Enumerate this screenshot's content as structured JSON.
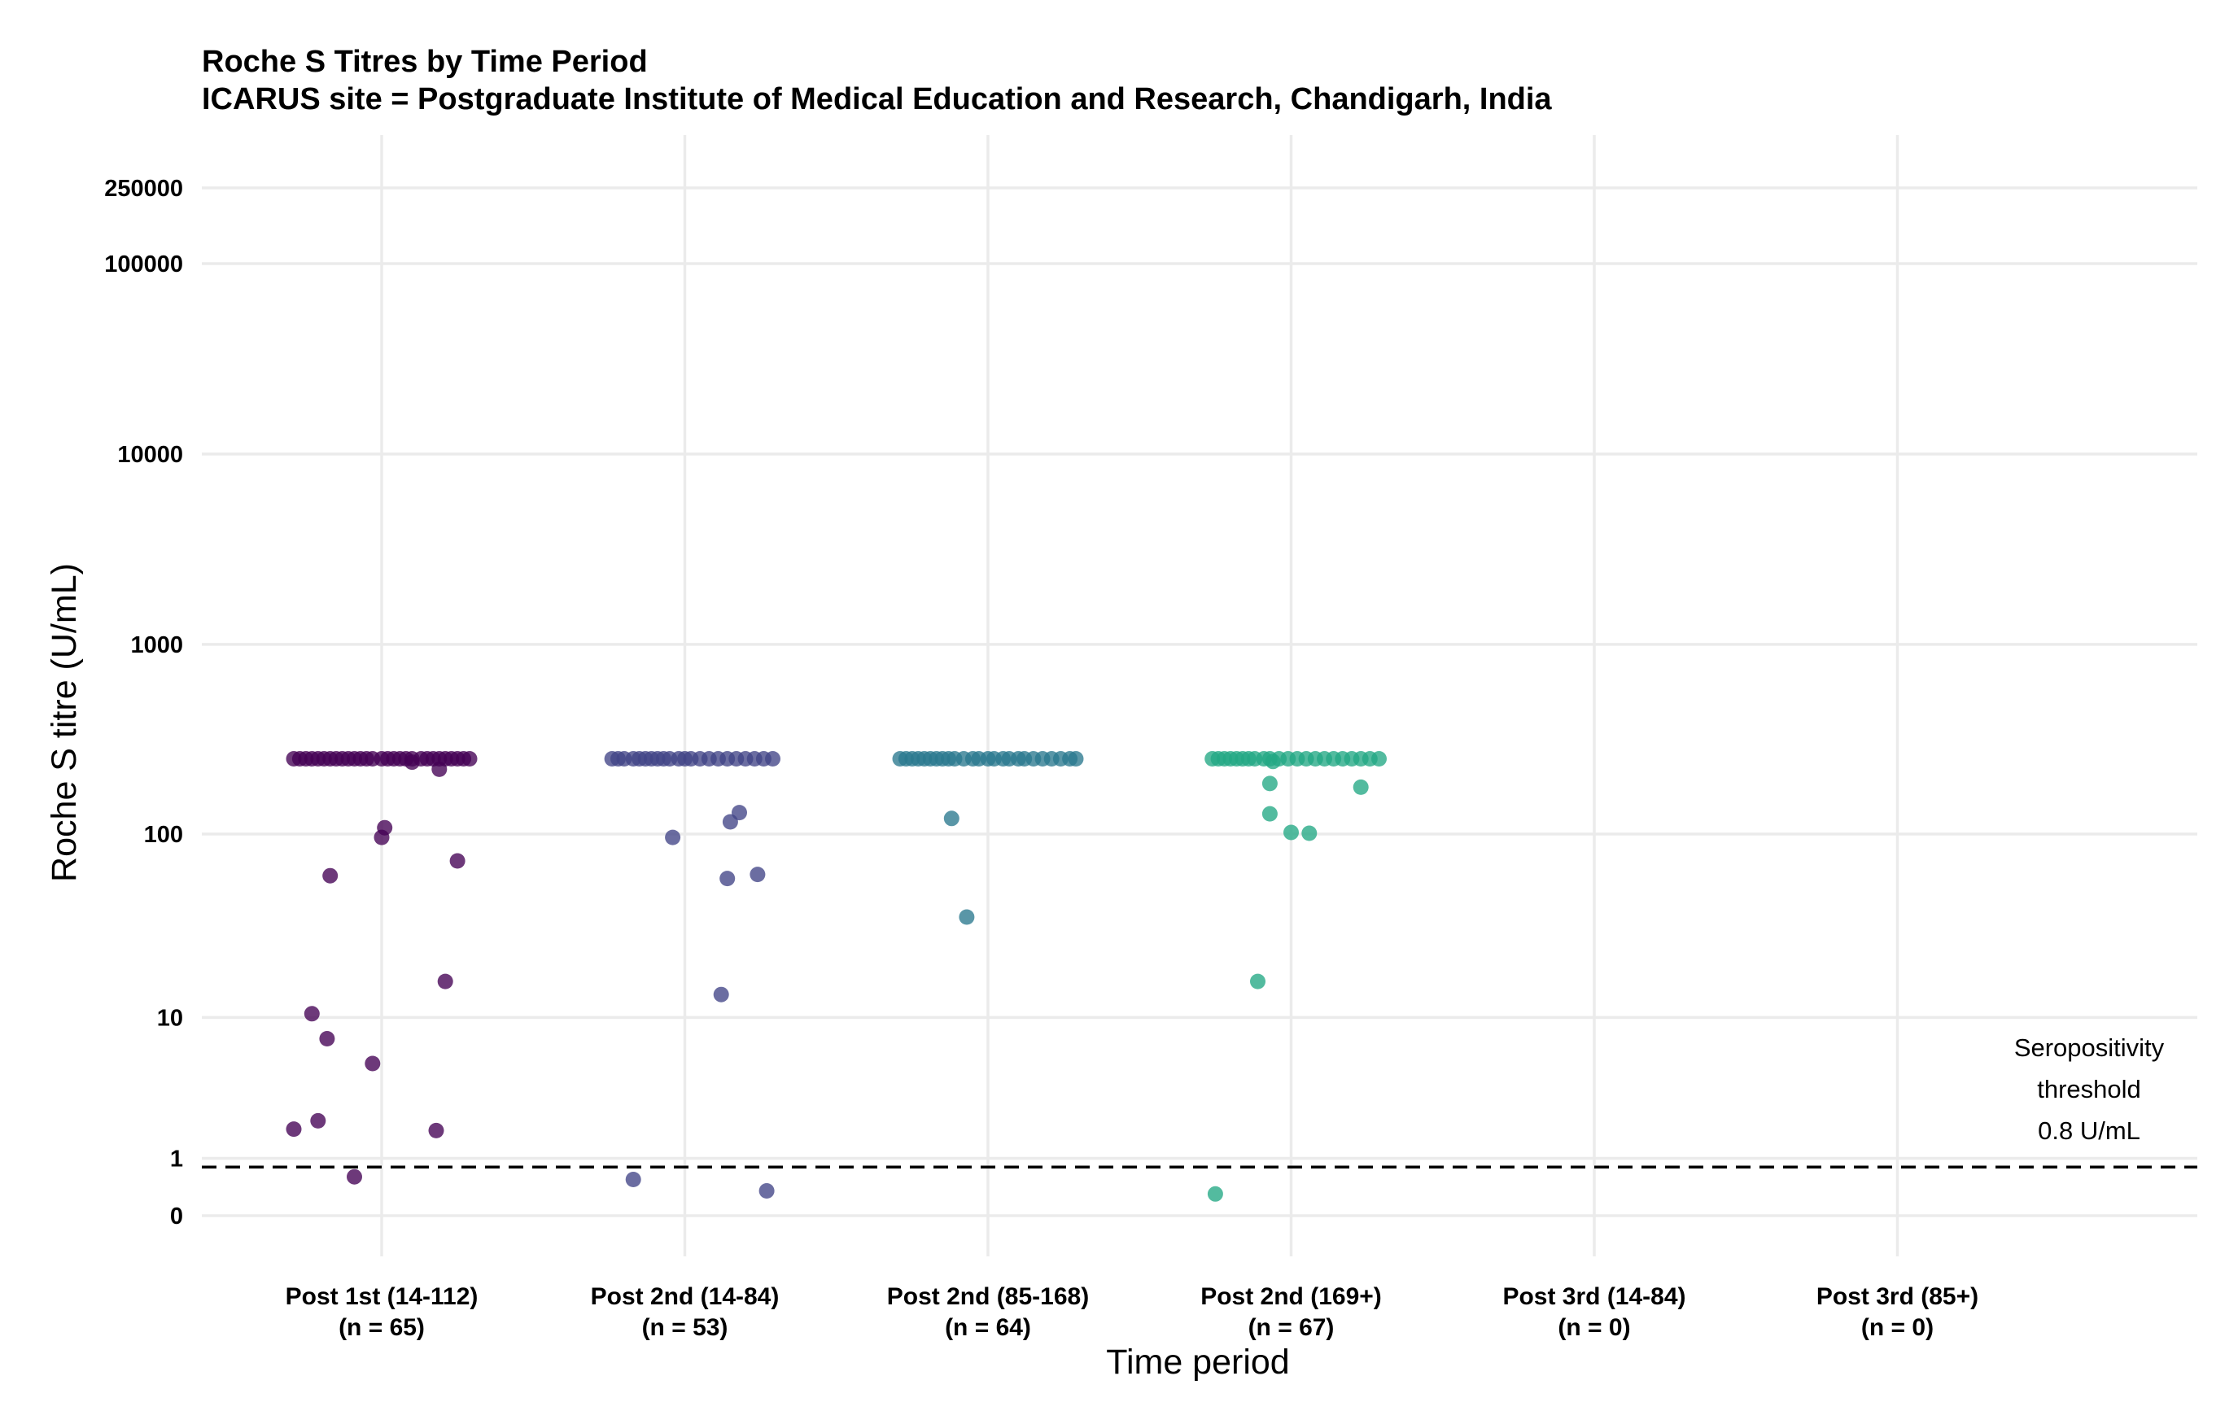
{
  "chart_data": {
    "type": "scatter",
    "title": "Roche S Titres by Time Period",
    "subtitle": "ICARUS site = Postgraduate Institute of Medical Education and Research, Chandigarh, India",
    "xlabel": "Time period",
    "ylabel": "Roche S titre (U/mL)",
    "y_scale": "pseudo-log",
    "y_ticks": [
      {
        "value": 0,
        "label": "0"
      },
      {
        "value": 1,
        "label": "1"
      },
      {
        "value": 10,
        "label": "10"
      },
      {
        "value": 100,
        "label": "100"
      },
      {
        "value": 1000,
        "label": "1000"
      },
      {
        "value": 10000,
        "label": "10000"
      },
      {
        "value": 100000,
        "label": "100000"
      },
      {
        "value": 250000,
        "label": "250000"
      }
    ],
    "grid": true,
    "threshold": {
      "value": 0.8,
      "line_style": "dashed",
      "label_lines": [
        "Seropositivity",
        "threshold",
        "0.8 U/mL"
      ]
    },
    "categories": [
      {
        "label": "Post 1st (14-112)",
        "n_label": "(n = 65)",
        "color": "#440154"
      },
      {
        "label": "Post 2nd (14-84)",
        "n_label": "(n = 53)",
        "color": "#414487"
      },
      {
        "label": "Post 2nd (85-168)",
        "n_label": "(n = 64)",
        "color": "#2A788E"
      },
      {
        "label": "Post 2nd (169+)",
        "n_label": "(n = 67)",
        "color": "#22A884"
      },
      {
        "label": "Post 3rd (14-84)",
        "n_label": "(n = 0)",
        "color": "#7AD151"
      },
      {
        "label": "Post 3rd (85+)",
        "n_label": "(n = 0)",
        "color": "#FDE725"
      }
    ],
    "points": [
      {
        "category": 0,
        "x_offset": -0.29,
        "y": 250
      },
      {
        "category": 0,
        "x_offset": -0.27,
        "y": 250
      },
      {
        "category": 0,
        "x_offset": -0.25,
        "y": 250
      },
      {
        "category": 0,
        "x_offset": -0.23,
        "y": 250
      },
      {
        "category": 0,
        "x_offset": -0.21,
        "y": 250
      },
      {
        "category": 0,
        "x_offset": -0.19,
        "y": 250
      },
      {
        "category": 0,
        "x_offset": -0.17,
        "y": 250
      },
      {
        "category": 0,
        "x_offset": -0.15,
        "y": 250
      },
      {
        "category": 0,
        "x_offset": -0.13,
        "y": 250
      },
      {
        "category": 0,
        "x_offset": -0.11,
        "y": 250
      },
      {
        "category": 0,
        "x_offset": -0.09,
        "y": 250
      },
      {
        "category": 0,
        "x_offset": -0.07,
        "y": 250
      },
      {
        "category": 0,
        "x_offset": -0.05,
        "y": 250
      },
      {
        "category": 0,
        "x_offset": -0.03,
        "y": 250
      },
      {
        "category": 0,
        "x_offset": 0.0,
        "y": 250
      },
      {
        "category": 0,
        "x_offset": 0.02,
        "y": 250
      },
      {
        "category": 0,
        "x_offset": 0.04,
        "y": 250
      },
      {
        "category": 0,
        "x_offset": 0.06,
        "y": 250
      },
      {
        "category": 0,
        "x_offset": 0.08,
        "y": 250
      },
      {
        "category": 0,
        "x_offset": 0.1,
        "y": 250
      },
      {
        "category": 0,
        "x_offset": 0.13,
        "y": 250
      },
      {
        "category": 0,
        "x_offset": 0.15,
        "y": 250
      },
      {
        "category": 0,
        "x_offset": 0.17,
        "y": 250
      },
      {
        "category": 0,
        "x_offset": 0.19,
        "y": 250
      },
      {
        "category": 0,
        "x_offset": 0.21,
        "y": 250
      },
      {
        "category": 0,
        "x_offset": 0.23,
        "y": 250
      },
      {
        "category": 0,
        "x_offset": 0.25,
        "y": 250
      },
      {
        "category": 0,
        "x_offset": 0.27,
        "y": 250
      },
      {
        "category": 0,
        "x_offset": 0.29,
        "y": 250
      },
      {
        "category": 0,
        "x_offset": 0.1,
        "y": 240
      },
      {
        "category": 0,
        "x_offset": 0.19,
        "y": 220
      },
      {
        "category": 0,
        "x_offset": 0.01,
        "y": 108
      },
      {
        "category": 0,
        "x_offset": 0.0,
        "y": 96
      },
      {
        "category": 0,
        "x_offset": 0.25,
        "y": 72
      },
      {
        "category": 0,
        "x_offset": -0.17,
        "y": 60
      },
      {
        "category": 0,
        "x_offset": 0.21,
        "y": 16
      },
      {
        "category": 0,
        "x_offset": -0.23,
        "y": 10.5
      },
      {
        "category": 0,
        "x_offset": -0.18,
        "y": 7.5
      },
      {
        "category": 0,
        "x_offset": -0.03,
        "y": 5.3
      },
      {
        "category": 0,
        "x_offset": -0.21,
        "y": 2.15
      },
      {
        "category": 0,
        "x_offset": -0.29,
        "y": 1.85
      },
      {
        "category": 0,
        "x_offset": 0.18,
        "y": 1.8
      },
      {
        "category": 0,
        "x_offset": -0.09,
        "y": 0.6
      },
      {
        "category": 1,
        "x_offset": -0.24,
        "y": 250
      },
      {
        "category": 1,
        "x_offset": -0.22,
        "y": 250
      },
      {
        "category": 1,
        "x_offset": -0.2,
        "y": 250
      },
      {
        "category": 1,
        "x_offset": -0.17,
        "y": 250
      },
      {
        "category": 1,
        "x_offset": -0.15,
        "y": 250
      },
      {
        "category": 1,
        "x_offset": -0.13,
        "y": 250
      },
      {
        "category": 1,
        "x_offset": -0.11,
        "y": 250
      },
      {
        "category": 1,
        "x_offset": -0.09,
        "y": 250
      },
      {
        "category": 1,
        "x_offset": -0.07,
        "y": 250
      },
      {
        "category": 1,
        "x_offset": -0.05,
        "y": 250
      },
      {
        "category": 1,
        "x_offset": -0.02,
        "y": 250
      },
      {
        "category": 1,
        "x_offset": 0.0,
        "y": 250
      },
      {
        "category": 1,
        "x_offset": 0.02,
        "y": 250
      },
      {
        "category": 1,
        "x_offset": 0.05,
        "y": 250
      },
      {
        "category": 1,
        "x_offset": 0.08,
        "y": 250
      },
      {
        "category": 1,
        "x_offset": 0.11,
        "y": 250
      },
      {
        "category": 1,
        "x_offset": 0.14,
        "y": 250
      },
      {
        "category": 1,
        "x_offset": 0.17,
        "y": 250
      },
      {
        "category": 1,
        "x_offset": 0.2,
        "y": 250
      },
      {
        "category": 1,
        "x_offset": 0.23,
        "y": 250
      },
      {
        "category": 1,
        "x_offset": 0.26,
        "y": 250
      },
      {
        "category": 1,
        "x_offset": 0.29,
        "y": 250
      },
      {
        "category": 1,
        "x_offset": 0.18,
        "y": 130
      },
      {
        "category": 1,
        "x_offset": 0.15,
        "y": 116
      },
      {
        "category": 1,
        "x_offset": -0.04,
        "y": 96
      },
      {
        "category": 1,
        "x_offset": 0.24,
        "y": 61
      },
      {
        "category": 1,
        "x_offset": 0.14,
        "y": 58
      },
      {
        "category": 1,
        "x_offset": 0.12,
        "y": 13.5
      },
      {
        "category": 1,
        "x_offset": -0.17,
        "y": 0.55
      },
      {
        "category": 1,
        "x_offset": 0.27,
        "y": 0.35
      },
      {
        "category": 2,
        "x_offset": -0.29,
        "y": 250
      },
      {
        "category": 2,
        "x_offset": -0.27,
        "y": 250
      },
      {
        "category": 2,
        "x_offset": -0.25,
        "y": 250
      },
      {
        "category": 2,
        "x_offset": -0.23,
        "y": 250
      },
      {
        "category": 2,
        "x_offset": -0.21,
        "y": 250
      },
      {
        "category": 2,
        "x_offset": -0.19,
        "y": 250
      },
      {
        "category": 2,
        "x_offset": -0.17,
        "y": 250
      },
      {
        "category": 2,
        "x_offset": -0.15,
        "y": 250
      },
      {
        "category": 2,
        "x_offset": -0.13,
        "y": 250
      },
      {
        "category": 2,
        "x_offset": -0.11,
        "y": 250
      },
      {
        "category": 2,
        "x_offset": -0.08,
        "y": 250
      },
      {
        "category": 2,
        "x_offset": -0.05,
        "y": 250
      },
      {
        "category": 2,
        "x_offset": -0.03,
        "y": 250
      },
      {
        "category": 2,
        "x_offset": 0.0,
        "y": 250
      },
      {
        "category": 2,
        "x_offset": 0.02,
        "y": 250
      },
      {
        "category": 2,
        "x_offset": 0.05,
        "y": 250
      },
      {
        "category": 2,
        "x_offset": 0.07,
        "y": 250
      },
      {
        "category": 2,
        "x_offset": 0.1,
        "y": 250
      },
      {
        "category": 2,
        "x_offset": 0.12,
        "y": 250
      },
      {
        "category": 2,
        "x_offset": 0.15,
        "y": 250
      },
      {
        "category": 2,
        "x_offset": 0.18,
        "y": 250
      },
      {
        "category": 2,
        "x_offset": 0.21,
        "y": 250
      },
      {
        "category": 2,
        "x_offset": 0.24,
        "y": 250
      },
      {
        "category": 2,
        "x_offset": 0.27,
        "y": 250
      },
      {
        "category": 2,
        "x_offset": 0.29,
        "y": 250
      },
      {
        "category": 2,
        "x_offset": -0.12,
        "y": 121
      },
      {
        "category": 2,
        "x_offset": -0.07,
        "y": 36
      },
      {
        "category": 3,
        "x_offset": -0.26,
        "y": 250
      },
      {
        "category": 3,
        "x_offset": -0.24,
        "y": 250
      },
      {
        "category": 3,
        "x_offset": -0.22,
        "y": 250
      },
      {
        "category": 3,
        "x_offset": -0.2,
        "y": 250
      },
      {
        "category": 3,
        "x_offset": -0.18,
        "y": 250
      },
      {
        "category": 3,
        "x_offset": -0.16,
        "y": 250
      },
      {
        "category": 3,
        "x_offset": -0.14,
        "y": 250
      },
      {
        "category": 3,
        "x_offset": -0.12,
        "y": 250
      },
      {
        "category": 3,
        "x_offset": -0.09,
        "y": 250
      },
      {
        "category": 3,
        "x_offset": -0.07,
        "y": 250
      },
      {
        "category": 3,
        "x_offset": -0.04,
        "y": 250
      },
      {
        "category": 3,
        "x_offset": -0.01,
        "y": 250
      },
      {
        "category": 3,
        "x_offset": 0.02,
        "y": 250
      },
      {
        "category": 3,
        "x_offset": 0.05,
        "y": 250
      },
      {
        "category": 3,
        "x_offset": 0.08,
        "y": 250
      },
      {
        "category": 3,
        "x_offset": 0.11,
        "y": 250
      },
      {
        "category": 3,
        "x_offset": 0.14,
        "y": 250
      },
      {
        "category": 3,
        "x_offset": 0.17,
        "y": 250
      },
      {
        "category": 3,
        "x_offset": 0.2,
        "y": 250
      },
      {
        "category": 3,
        "x_offset": 0.23,
        "y": 250
      },
      {
        "category": 3,
        "x_offset": 0.26,
        "y": 250
      },
      {
        "category": 3,
        "x_offset": 0.29,
        "y": 250
      },
      {
        "category": 3,
        "x_offset": -0.06,
        "y": 242
      },
      {
        "category": 3,
        "x_offset": -0.07,
        "y": 185
      },
      {
        "category": 3,
        "x_offset": 0.23,
        "y": 177
      },
      {
        "category": 3,
        "x_offset": -0.07,
        "y": 128
      },
      {
        "category": 3,
        "x_offset": 0.0,
        "y": 102
      },
      {
        "category": 3,
        "x_offset": 0.06,
        "y": 101
      },
      {
        "category": 3,
        "x_offset": -0.11,
        "y": 16
      },
      {
        "category": 3,
        "x_offset": -0.25,
        "y": 0.3
      }
    ]
  }
}
